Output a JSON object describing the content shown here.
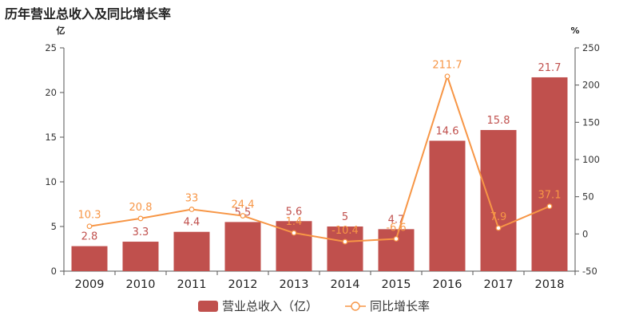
{
  "title": "历年营业总收入及同比增长率",
  "chart_data": {
    "type": "bar",
    "categories": [
      "2009",
      "2010",
      "2011",
      "2012",
      "2013",
      "2014",
      "2015",
      "2016",
      "2017",
      "2018"
    ],
    "series": [
      {
        "name": "营业总收入（亿）",
        "type": "bar",
        "axis": "left",
        "color": "#c0504d",
        "values": [
          2.8,
          3.3,
          4.4,
          5.5,
          5.6,
          5,
          4.7,
          14.6,
          15.8,
          21.7
        ],
        "labels": [
          "2.8",
          "3.3",
          "4.4",
          "5.5",
          "5.6",
          "5",
          "4.7",
          "14.6",
          "15.8",
          "21.7"
        ]
      },
      {
        "name": "同比增长率",
        "type": "line",
        "axis": "right",
        "color": "#f79646",
        "values": [
          10.3,
          20.8,
          33,
          24.4,
          1.4,
          -10.4,
          -6.6,
          211.7,
          7.9,
          37.1
        ],
        "labels": [
          "10.3",
          "20.8",
          "33",
          "24.4",
          "1.4",
          "-10.4",
          "-6.6",
          "211.7",
          "7.9",
          "37.1"
        ]
      }
    ],
    "y_left": {
      "unit": "亿",
      "ylim": [
        0,
        25
      ],
      "ticks": [
        0,
        5,
        10,
        15,
        20,
        25
      ]
    },
    "y_right": {
      "unit": "%",
      "ylim": [
        -50,
        250
      ],
      "ticks": [
        -50,
        0,
        50,
        100,
        150,
        200,
        250
      ]
    },
    "legend_position": "bottom",
    "grid": false
  }
}
